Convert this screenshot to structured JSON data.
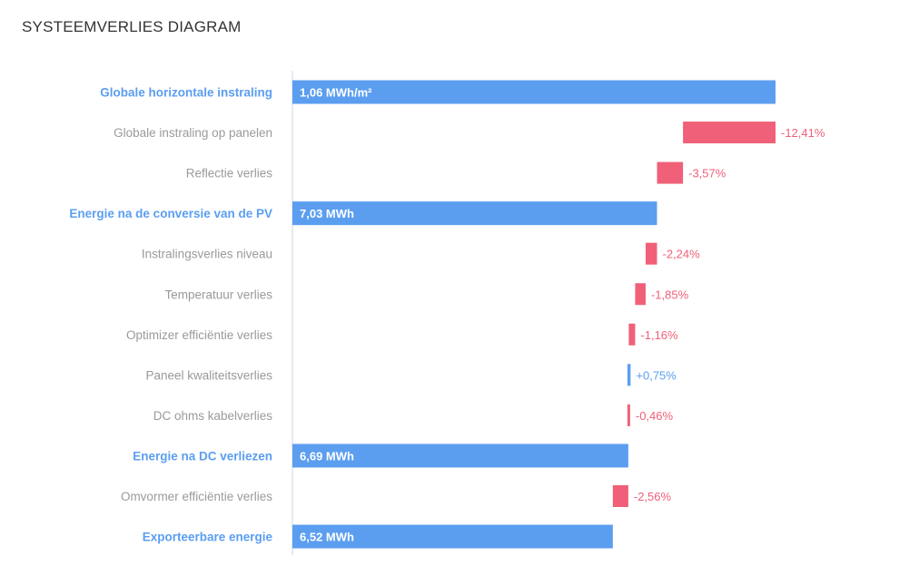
{
  "chart_data": {
    "type": "bar",
    "title": "SYSTEEMVERLIES DIAGRAM",
    "xlim": [
      0,
      1.06
    ],
    "grid": false,
    "legend": "none",
    "colors": {
      "total": "#5b9ef0",
      "loss": "#f06078",
      "gain": "#5b9ef0",
      "label_total": "#5b9ef0",
      "label_step": "#9a9a9a",
      "axis": "#d5dbe8"
    },
    "categories": [
      "Globale horizontale instraling",
      "Globale instraling op panelen",
      "Reflectie verlies",
      "Energie na de conversie van de PV",
      "Instralingsverlies niveau",
      "Temperatuur verlies",
      "Optimizer efficiëntie verlies",
      "Paneel kwaliteitsverlies",
      "DC ohms kabelverlies",
      "Energie na DC verliezen",
      "Omvormer efficiëntie verlies",
      "Exporteerbare energie"
    ],
    "rows": [
      {
        "label": "Globale horizontale instraling",
        "kind": "total",
        "start": 0,
        "end": 1.06,
        "value_label": "1,06 MWh/m²"
      },
      {
        "label": "Globale instraling op panelen",
        "kind": "loss",
        "start": 0.857,
        "end": 1.06,
        "value_label": "-12,41%"
      },
      {
        "label": "Reflectie verlies",
        "kind": "loss",
        "start": 0.8,
        "end": 0.857,
        "value_label": "-3,57%"
      },
      {
        "label": "Energie na de conversie van de PV",
        "kind": "total",
        "start": 0,
        "end": 0.8,
        "value_label": "7,03 MWh"
      },
      {
        "label": "Instralingsverlies niveau",
        "kind": "loss",
        "start": 0.775,
        "end": 0.8,
        "value_label": "-2,24%"
      },
      {
        "label": "Temperatuur verlies",
        "kind": "loss",
        "start": 0.752,
        "end": 0.775,
        "value_label": "-1,85%"
      },
      {
        "label": "Optimizer efficiëntie verlies",
        "kind": "loss",
        "start": 0.738,
        "end": 0.752,
        "value_label": "-1,16%"
      },
      {
        "label": "Paneel kwaliteitsverlies",
        "kind": "gain",
        "start": 0.735,
        "end": 0.742,
        "value_label": "+0,75%"
      },
      {
        "label": "DC ohms kabelverlies",
        "kind": "loss",
        "start": 0.735,
        "end": 0.74,
        "value_label": "-0,46%"
      },
      {
        "label": "Energie na DC verliezen",
        "kind": "total",
        "start": 0,
        "end": 0.737,
        "value_label": "6,69 MWh"
      },
      {
        "label": "Omvormer efficiëntie verlies",
        "kind": "loss",
        "start": 0.703,
        "end": 0.737,
        "value_label": "-2,56%"
      },
      {
        "label": "Exporteerbare energie",
        "kind": "total",
        "start": 0,
        "end": 0.703,
        "value_label": "6,52 MWh"
      }
    ]
  }
}
